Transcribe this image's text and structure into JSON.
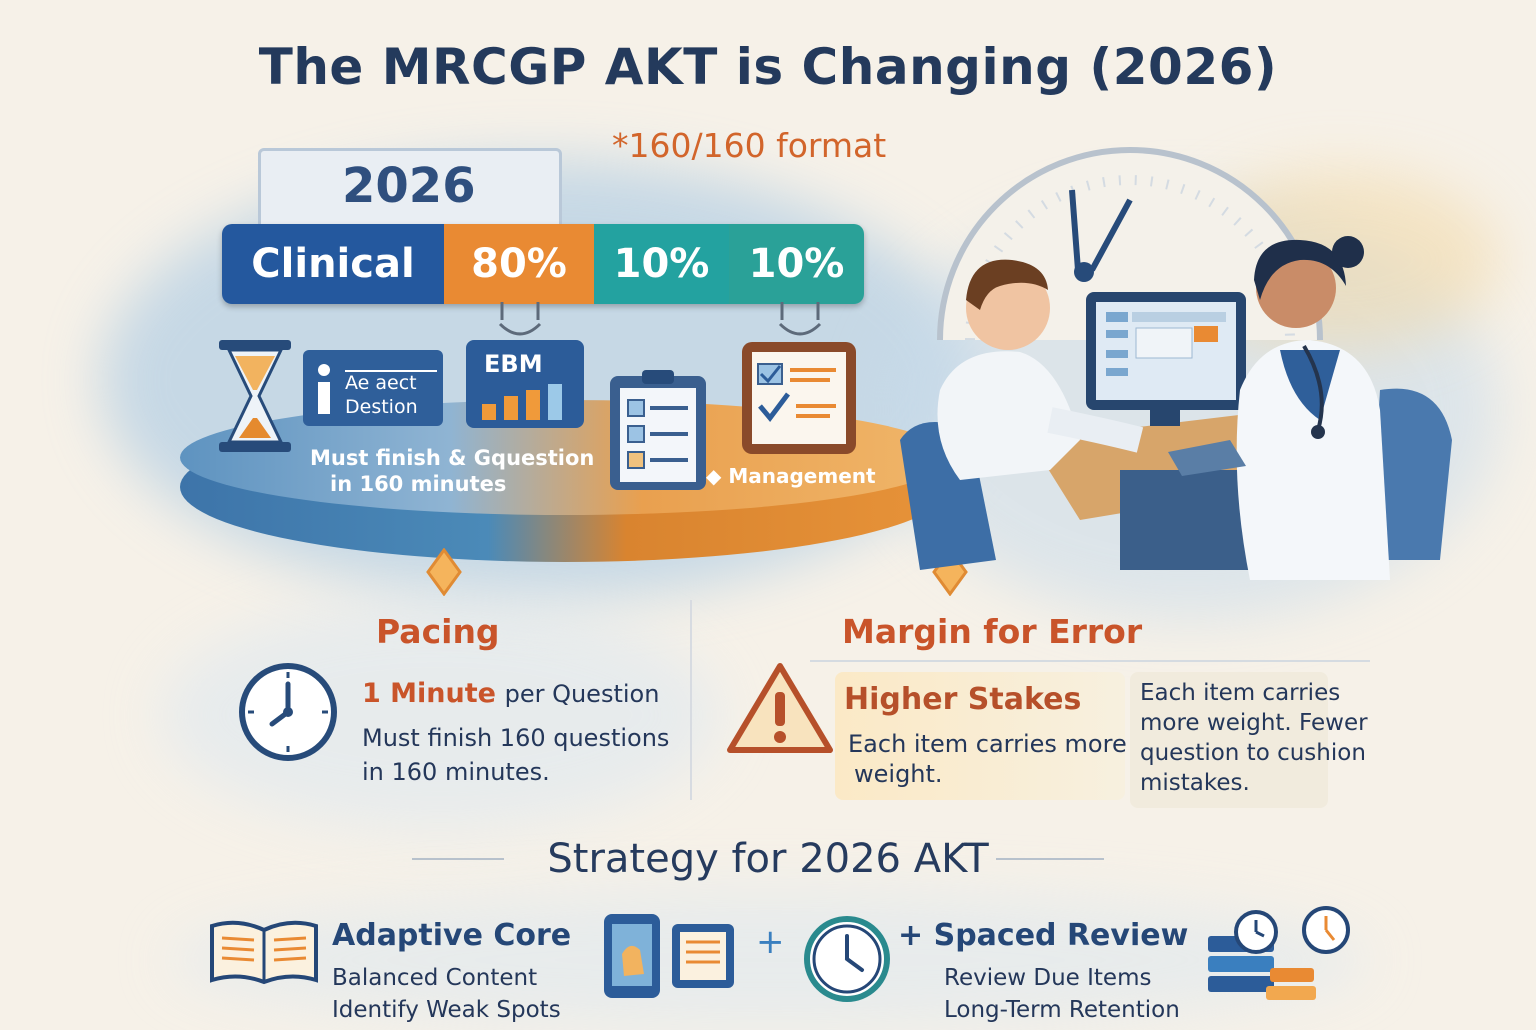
{
  "header": {
    "title": "The MRCGP AKT is Changing (2026)",
    "subtitle": "*160/160 format",
    "year": "2026"
  },
  "breakdown": {
    "segments": [
      {
        "label": "Clinical",
        "color": "#24589e"
      },
      {
        "label": "80%",
        "color": "#e98a33"
      },
      {
        "label": "10%",
        "color": "#23a2a0"
      },
      {
        "label": "10%",
        "color": "#2aa198"
      }
    ],
    "info_card_line1": "Ae aect",
    "info_card_line2": "Destion",
    "ebm_label": "EBM",
    "table_caption_line1": "Must finish & Gquestion",
    "table_caption_line2": "in 160 minutes",
    "management_label": "Management",
    "management_icon": "diamond-bullet-icon"
  },
  "pacing": {
    "heading": "Pacing",
    "lead_bold": "1 Minute",
    "lead_rest": "per Question",
    "line1": "Must finish 160 questions",
    "line2": "in 160 minutes."
  },
  "margin": {
    "heading": "Margin for Error",
    "stakes_heading": "Higher Stakes",
    "stakes_line1": "Each item carries more",
    "stakes_line2": "weight.",
    "side_line1": "Each item carries",
    "side_line2": "more weight. Fewer",
    "side_line3": "question to cushion",
    "side_line4": "mistakes."
  },
  "strategy": {
    "title": "Strategy for 2026 AKT",
    "plus": "+",
    "left_heading": "Adaptive Core",
    "left_line1": "Balanced Content",
    "left_line2": "Identify Weak Spots",
    "right_heading": "+ Spaced Review",
    "right_line1": "Review Due Items",
    "right_line2": "Long-Term Retention"
  },
  "colors": {
    "navy": "#243a5c",
    "orange": "#d2652b",
    "teal": "#23a2a0",
    "blue": "#24589e"
  }
}
